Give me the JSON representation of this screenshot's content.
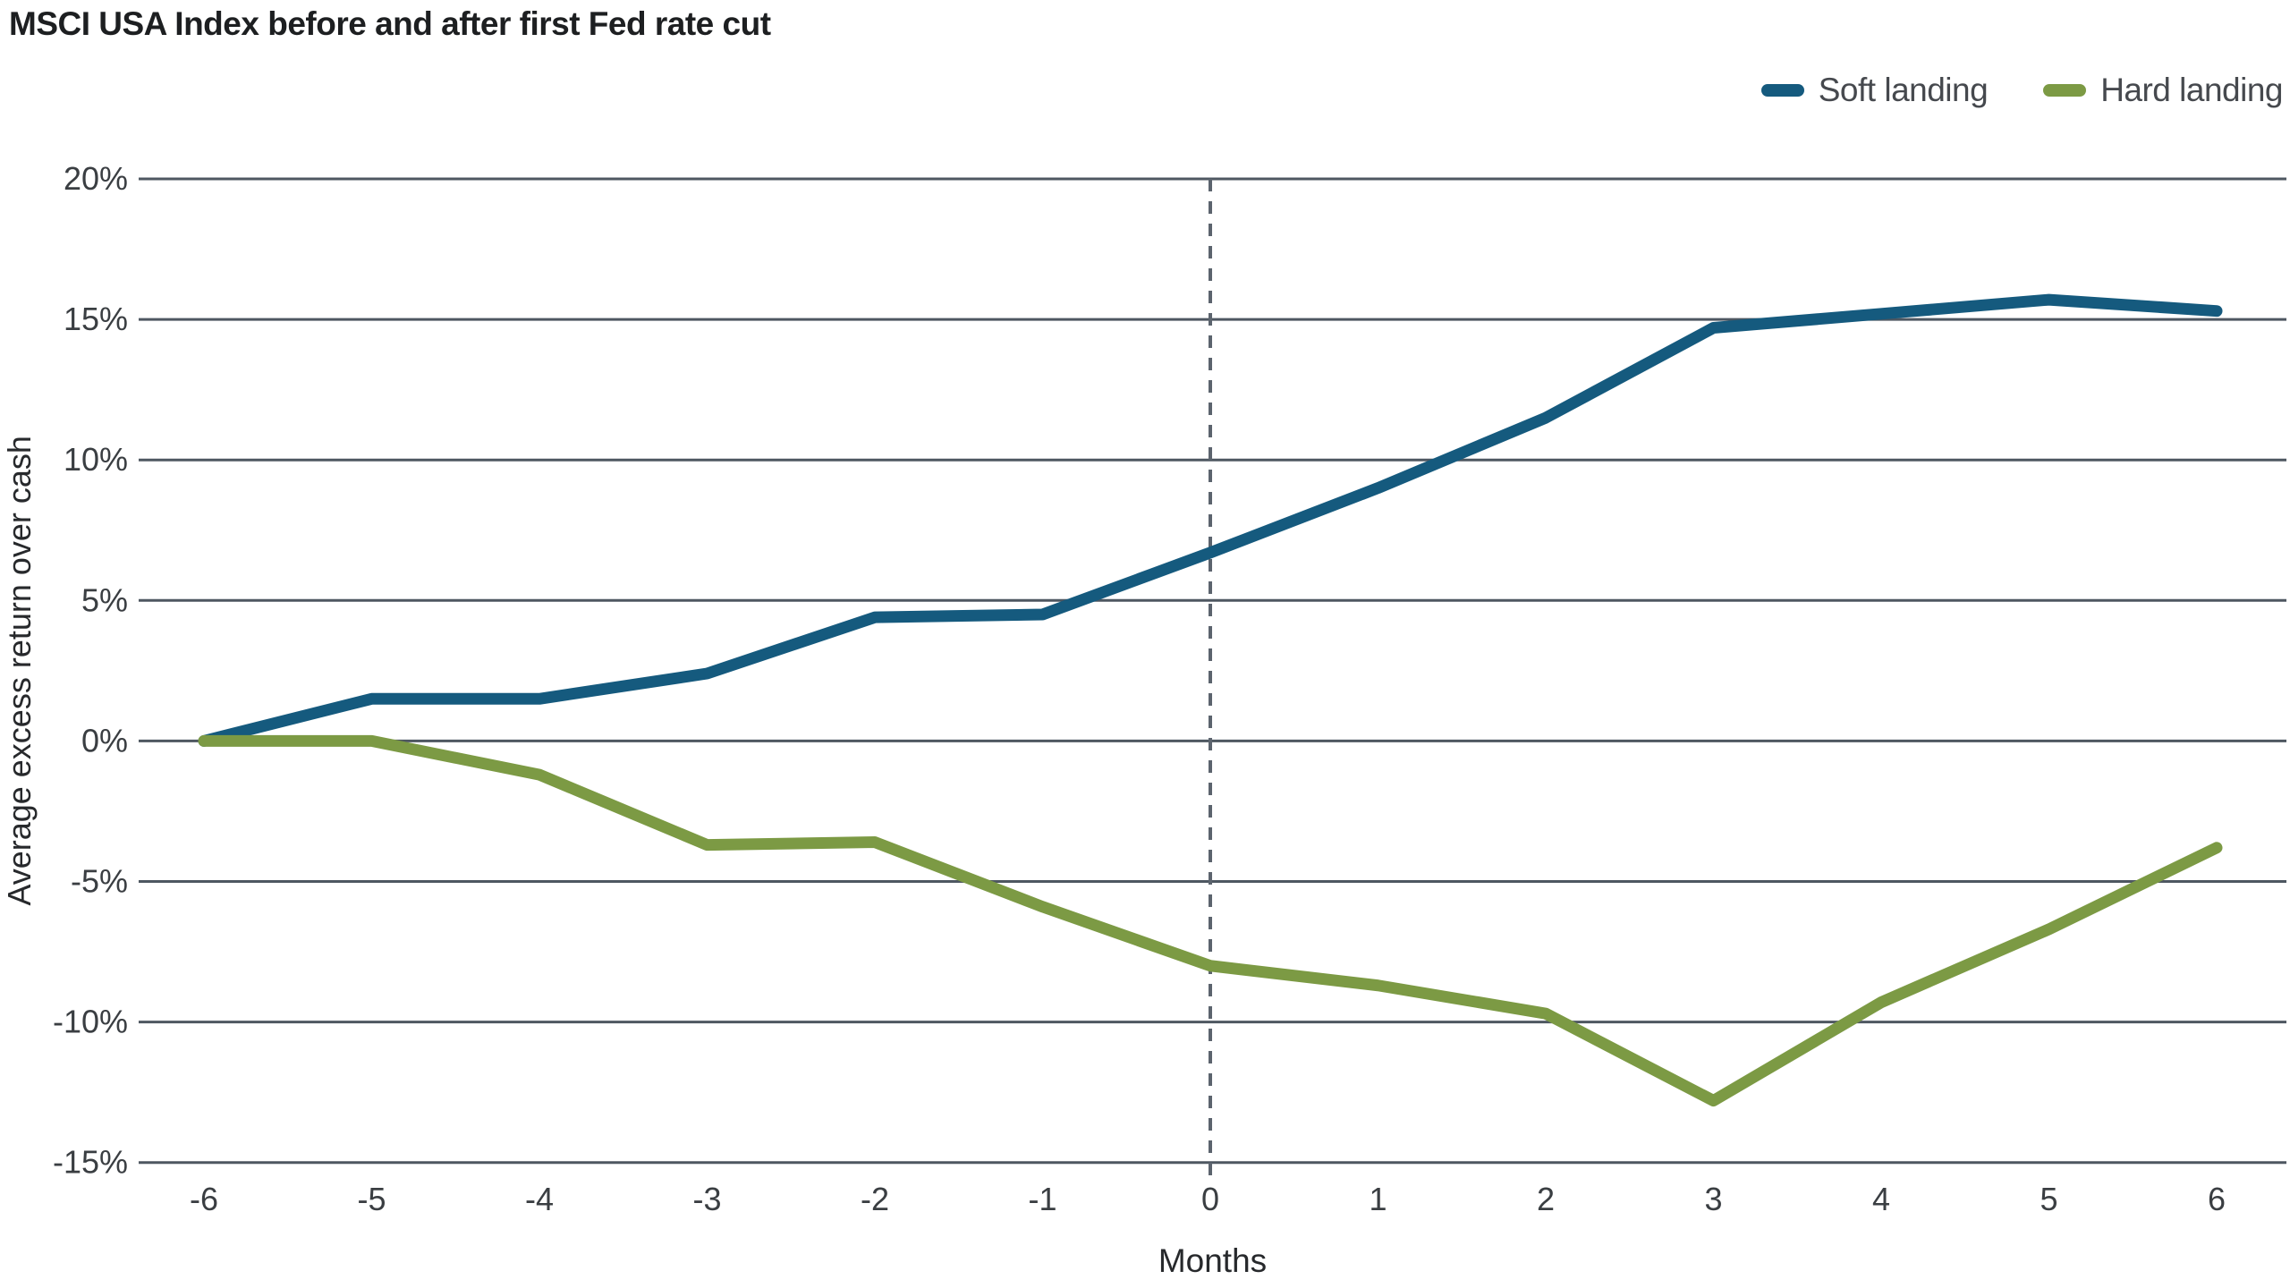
{
  "title": "MSCI USA Index before and after first Fed rate cut",
  "legend": [
    {
      "label": "Soft landing",
      "color": "#155a7e"
    },
    {
      "label": "Hard landing",
      "color": "#7c9a44"
    }
  ],
  "chart_data": {
    "type": "line",
    "title": "MSCI USA Index before and after first Fed rate cut",
    "x": [
      -6,
      -5,
      -4,
      -3,
      -2,
      -1,
      0,
      1,
      2,
      3,
      4,
      5,
      6
    ],
    "x_tick_labels": [
      "-6",
      "-5",
      "-4",
      "-3",
      "-2",
      "-1",
      "0",
      "1",
      "2",
      "3",
      "4",
      "5",
      "6"
    ],
    "series": [
      {
        "name": "Soft landing",
        "color": "#155a7e",
        "values": [
          0,
          1.5,
          1.5,
          2.4,
          4.4,
          4.5,
          6.7,
          9.0,
          11.5,
          14.7,
          15.2,
          15.7,
          15.3
        ]
      },
      {
        "name": "Hard landing",
        "color": "#7c9a44",
        "values": [
          0,
          0,
          -1.2,
          -3.7,
          -3.6,
          -5.9,
          -8.0,
          -8.7,
          -9.7,
          -12.8,
          -9.3,
          -6.7,
          -3.8
        ]
      }
    ],
    "xlabel": "Months",
    "ylabel": "Average excess return over cash",
    "ylim": [
      -15,
      20
    ],
    "ytick_step": 5,
    "ytick_labels": [
      "20%",
      "15%",
      "10%",
      "5%",
      "0%",
      "-5%",
      "-10%",
      "-15%"
    ],
    "grid": "horizontal",
    "reference_line_x": 0,
    "legend_position": "top-right",
    "colors": {
      "gridline": "#4e5761",
      "reference_line": "#5c646e",
      "tick_text": "#3a3e42",
      "axis_title_text": "#27292c",
      "background": "#ffffff"
    }
  }
}
